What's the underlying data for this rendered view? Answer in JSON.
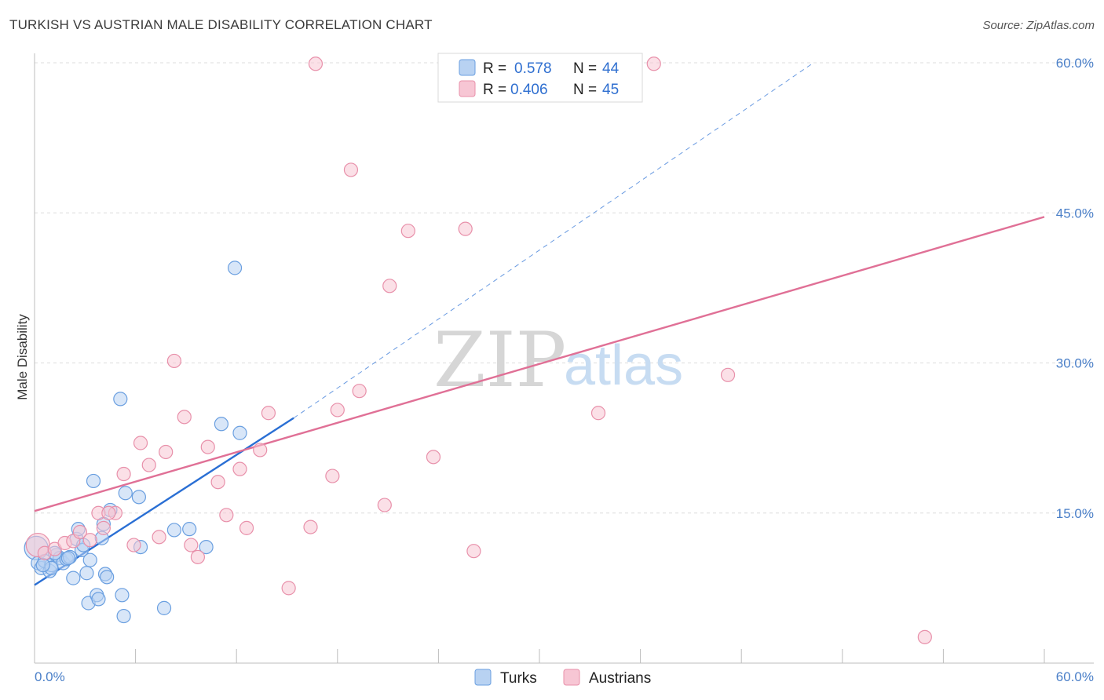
{
  "title": "TURKISH VS AUSTRIAN MALE DISABILITY CORRELATION CHART",
  "source": "Source: ZipAtlas.com",
  "chart_data": {
    "type": "scatter",
    "xlabel": "",
    "ylabel": "Male Disability",
    "xlim": [
      0,
      60
    ],
    "ylim": [
      0,
      60
    ],
    "x_tick_labels": [
      "0.0%",
      "60.0%"
    ],
    "y_ticks": [
      15,
      30,
      45,
      60
    ],
    "y_tick_labels": [
      "15.0%",
      "30.0%",
      "45.0%",
      "60.0%"
    ],
    "watermark": {
      "zip": "ZIP",
      "atlas": "atlas"
    },
    "legend": {
      "r_label": "R =",
      "n_label": "N =",
      "entries": [
        {
          "name": "Turks",
          "r": "0.578",
          "n": "44"
        },
        {
          "name": "Austrians",
          "r": "0.406",
          "n": "45"
        }
      ]
    },
    "series": [
      {
        "name": "Turks",
        "color": "#6a9fe0",
        "fill": "#b8d2f2",
        "line_color": "#2a6fd4",
        "trend": {
          "x": [
            0,
            15.4
          ],
          "y": [
            7.8,
            24.5
          ]
        },
        "trend_extension": {
          "x": [
            15.4,
            46.2
          ],
          "y": [
            24.5,
            59.9
          ]
        },
        "points": [
          [
            0.1,
            11.5
          ],
          [
            0.2,
            10.0
          ],
          [
            0.4,
            9.5
          ],
          [
            0.6,
            10.2
          ],
          [
            0.9,
            9.2
          ],
          [
            1.0,
            9.8
          ],
          [
            1.3,
            10.8
          ],
          [
            1.5,
            10.5
          ],
          [
            1.7,
            10.0
          ],
          [
            1.9,
            10.4
          ],
          [
            2.1,
            10.6
          ],
          [
            2.3,
            8.5
          ],
          [
            2.5,
            12.4
          ],
          [
            2.6,
            13.4
          ],
          [
            2.8,
            11.3
          ],
          [
            2.9,
            11.8
          ],
          [
            3.1,
            9.0
          ],
          [
            3.2,
            6.0
          ],
          [
            3.3,
            10.3
          ],
          [
            3.5,
            18.2
          ],
          [
            3.7,
            6.8
          ],
          [
            3.8,
            6.4
          ],
          [
            4.0,
            12.5
          ],
          [
            4.1,
            13.9
          ],
          [
            4.2,
            8.9
          ],
          [
            4.3,
            8.6
          ],
          [
            4.5,
            15.3
          ],
          [
            5.1,
            26.4
          ],
          [
            5.2,
            6.8
          ],
          [
            5.3,
            4.7
          ],
          [
            5.4,
            17.0
          ],
          [
            6.2,
            16.6
          ],
          [
            6.3,
            11.6
          ],
          [
            7.7,
            5.5
          ],
          [
            8.3,
            13.3
          ],
          [
            9.2,
            13.4
          ],
          [
            10.2,
            11.6
          ],
          [
            11.1,
            23.9
          ],
          [
            11.9,
            39.5
          ],
          [
            12.2,
            23.0
          ],
          [
            1.0,
            9.5
          ],
          [
            0.5,
            9.8
          ],
          [
            2.0,
            10.5
          ],
          [
            1.2,
            11.0
          ]
        ]
      },
      {
        "name": "Austrians",
        "color": "#e890aa",
        "fill": "#f7c6d4",
        "line_color": "#e07096",
        "trend": {
          "x": [
            0,
            60
          ],
          "y": [
            15.2,
            44.6
          ]
        },
        "points": [
          [
            0.2,
            11.8
          ],
          [
            0.6,
            11.0
          ],
          [
            1.2,
            11.4
          ],
          [
            1.8,
            12.0
          ],
          [
            2.3,
            12.2
          ],
          [
            2.7,
            13.1
          ],
          [
            3.3,
            12.3
          ],
          [
            3.8,
            15.0
          ],
          [
            4.1,
            13.5
          ],
          [
            4.8,
            15.0
          ],
          [
            5.3,
            18.9
          ],
          [
            5.9,
            11.8
          ],
          [
            6.3,
            22.0
          ],
          [
            6.8,
            19.8
          ],
          [
            7.4,
            12.6
          ],
          [
            7.8,
            21.1
          ],
          [
            8.3,
            30.2
          ],
          [
            8.9,
            24.6
          ],
          [
            9.3,
            11.8
          ],
          [
            9.7,
            10.6
          ],
          [
            10.3,
            21.6
          ],
          [
            10.9,
            18.1
          ],
          [
            11.4,
            14.8
          ],
          [
            12.2,
            19.4
          ],
          [
            12.6,
            13.5
          ],
          [
            13.4,
            21.3
          ],
          [
            13.9,
            25.0
          ],
          [
            15.1,
            7.5
          ],
          [
            16.7,
            59.9
          ],
          [
            16.4,
            13.6
          ],
          [
            17.7,
            18.7
          ],
          [
            18.0,
            25.3
          ],
          [
            18.8,
            49.3
          ],
          [
            19.3,
            27.2
          ],
          [
            20.8,
            15.8
          ],
          [
            21.1,
            37.7
          ],
          [
            22.2,
            43.2
          ],
          [
            23.7,
            20.6
          ],
          [
            25.6,
            43.4
          ],
          [
            26.1,
            11.2
          ],
          [
            33.5,
            25.0
          ],
          [
            36.8,
            59.9
          ],
          [
            41.2,
            28.8
          ],
          [
            52.9,
            2.6
          ],
          [
            4.4,
            15.0
          ]
        ]
      }
    ]
  }
}
